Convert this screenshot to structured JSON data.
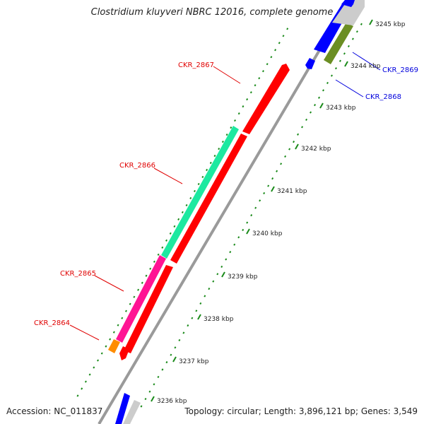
{
  "title": "Clostridium kluyveri NBRC 12016, complete genome",
  "accession": "Accession: NC_011837",
  "summary": "Topology: circular; Length: 3,896,121 bp; Genes: 3,549",
  "colors": {
    "backbone": "#9a9a9a",
    "tick": "#1a8a1a",
    "label_left": "#e00000",
    "label_right": "#0000dd"
  },
  "ticks": [
    {
      "label": "3236 kbp"
    },
    {
      "label": "3237 kbp"
    },
    {
      "label": "3238 kbp"
    },
    {
      "label": "3239 kbp"
    },
    {
      "label": "3240 kbp"
    },
    {
      "label": "3241 kbp"
    },
    {
      "label": "3242 kbp"
    },
    {
      "label": "3243 kbp"
    },
    {
      "label": "3244 kbp"
    },
    {
      "label": "3245 kbp"
    }
  ],
  "gene_labels": [
    {
      "text": "CKR_2867",
      "color": "#e00000"
    },
    {
      "text": "CKR_2866",
      "color": "#e00000"
    },
    {
      "text": "CKR_2865",
      "color": "#e00000"
    },
    {
      "text": "CKR_2864",
      "color": "#e00000"
    },
    {
      "text": "CKR_2869",
      "color": "#0000dd"
    },
    {
      "text": "CKR_2868",
      "color": "#0000dd"
    }
  ]
}
